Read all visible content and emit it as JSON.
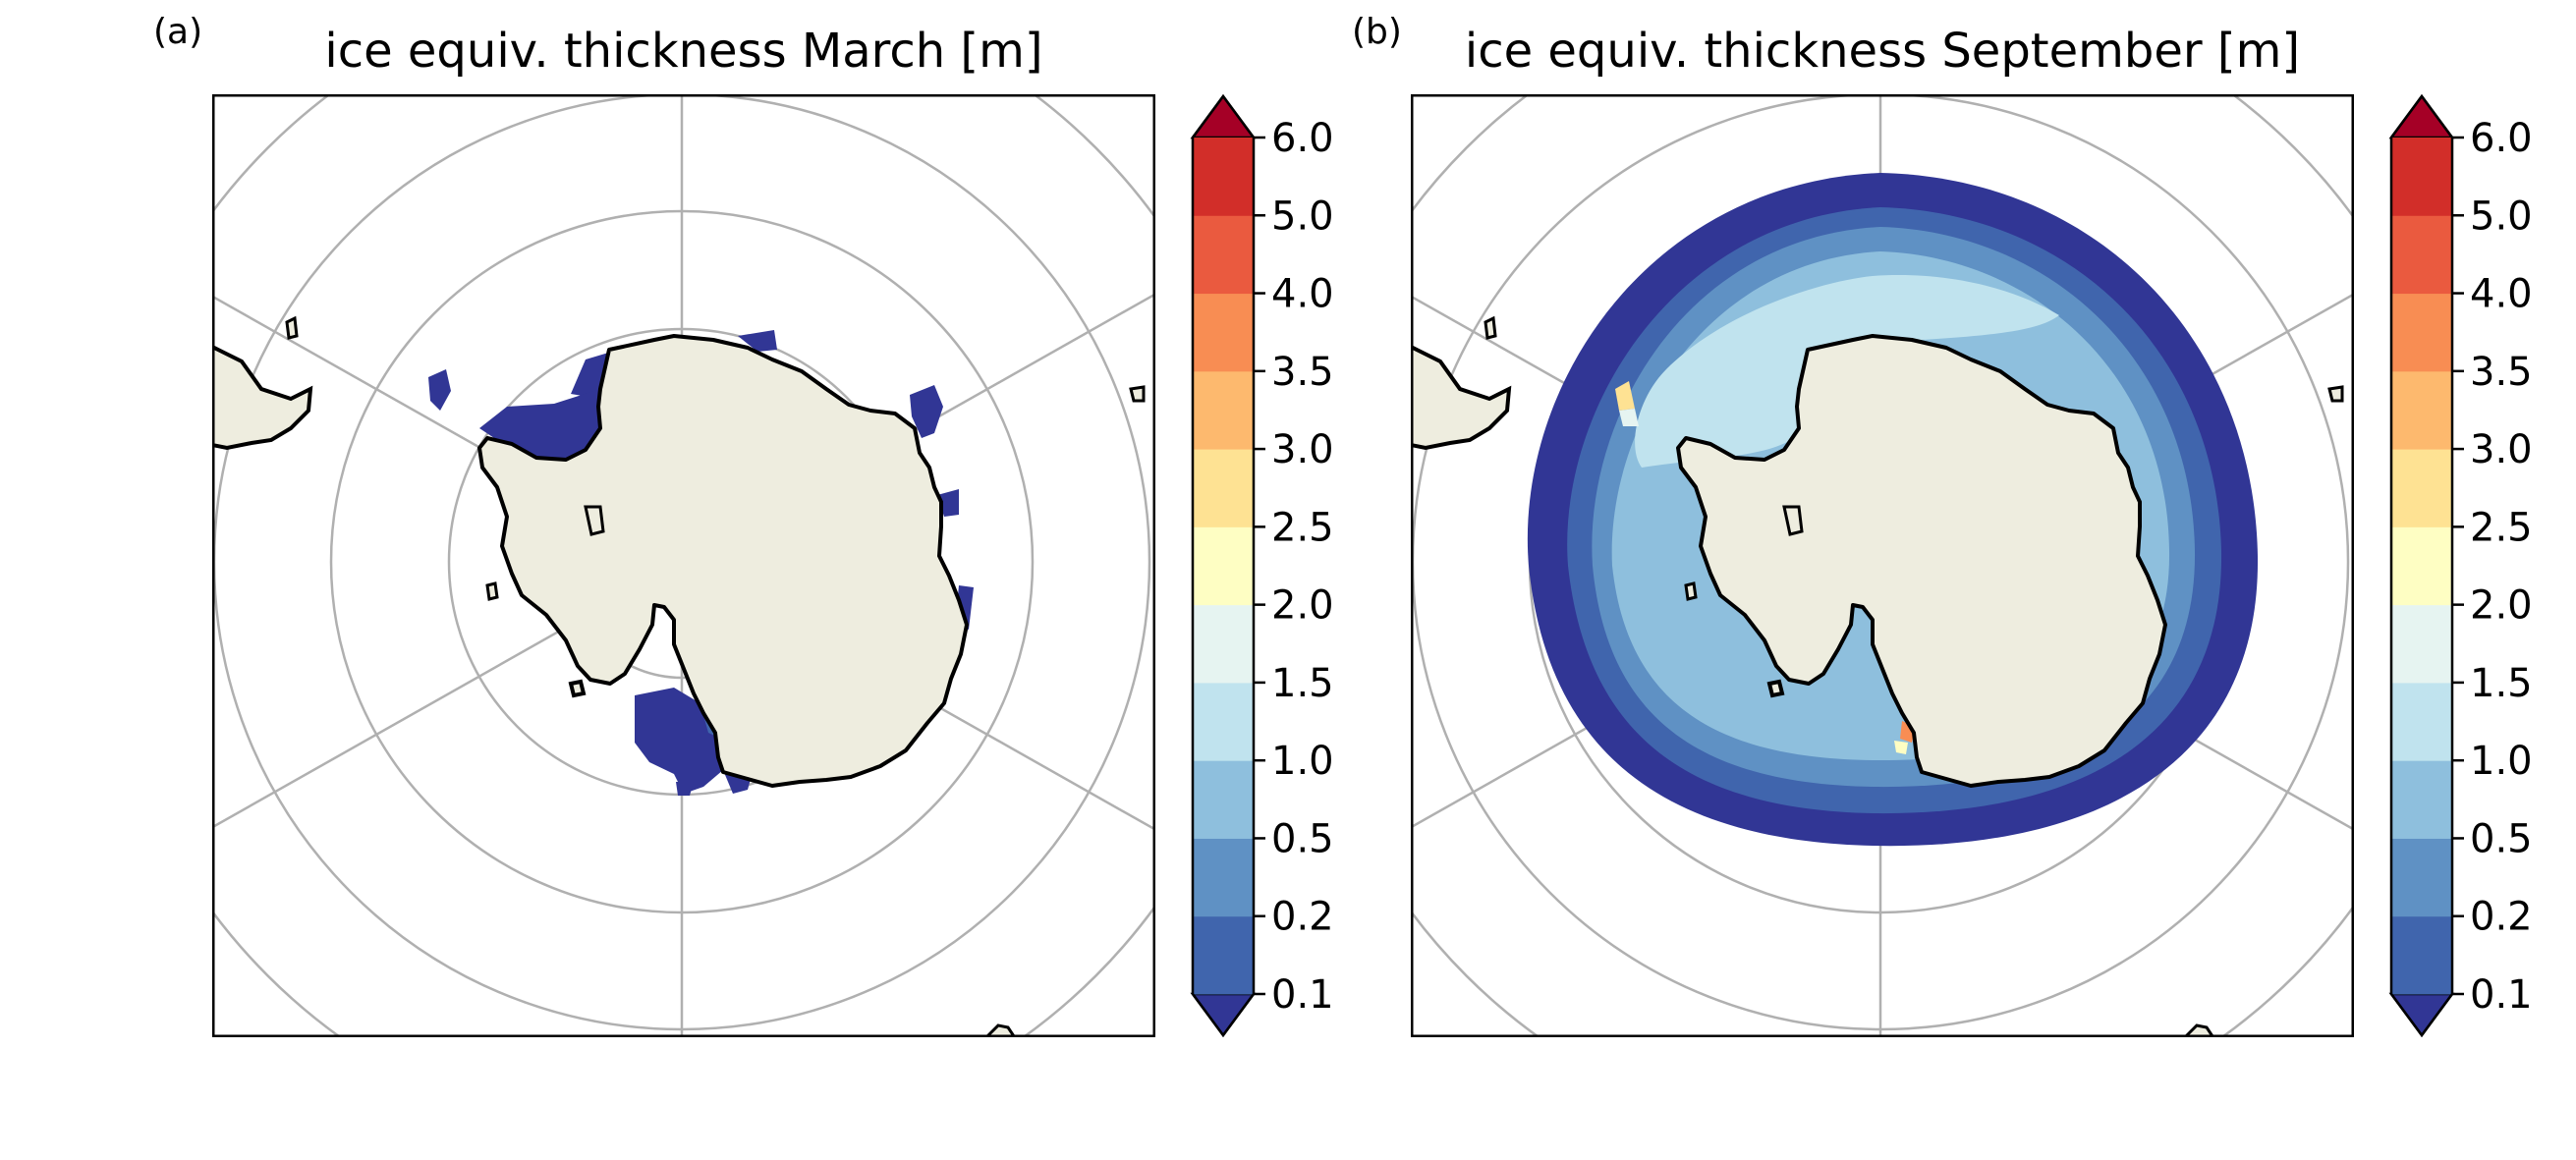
{
  "panels": [
    {
      "letter": "(a)",
      "title": "ice equiv. thickness March [m]",
      "colorbar_ticks": [
        "0.1",
        "0.2",
        "0.5",
        "1.0",
        "1.5",
        "2.0",
        "2.5",
        "3.0",
        "3.5",
        "4.0",
        "5.0",
        "6.0"
      ]
    },
    {
      "letter": "(b)",
      "title": "ice equiv. thickness September [m]",
      "colorbar_ticks": [
        "0.1",
        "0.2",
        "0.5",
        "1.0",
        "1.5",
        "2.0",
        "2.5",
        "3.0",
        "3.5",
        "4.0",
        "5.0",
        "6.0"
      ]
    }
  ],
  "colors": {
    "land": "#eeeddf",
    "gridline": "#b0b0b0",
    "coast": "#000000",
    "bins": [
      "#4065ad",
      "#5f91c4",
      "#8ebfdd",
      "#c0e3ee",
      "#e6f4f1",
      "#fefec3",
      "#fee293",
      "#fdb96e",
      "#f88d53",
      "#ea5a3f",
      "#d22e29"
    ],
    "under": "#313695",
    "over": "#a50026"
  }
}
